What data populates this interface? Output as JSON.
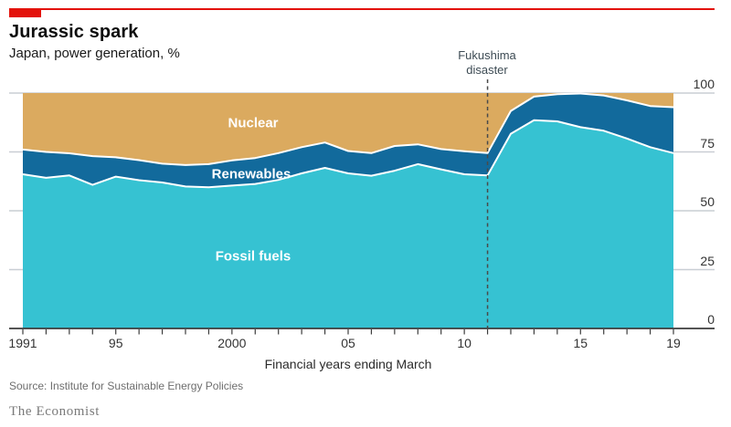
{
  "header": {
    "title": "Jurassic spark",
    "subtitle": "Japan, power generation, %"
  },
  "annotation": {
    "line1": "Fukushima",
    "line2": "disaster",
    "year": 2011
  },
  "series_labels": {
    "nuclear": "Nuclear",
    "renewables": "Renewables",
    "fossil": "Fossil fuels"
  },
  "x_axis_title": "Financial years ending March",
  "source": "Source: Institute for Sustainable Energy Policies",
  "brand": "The Economist",
  "colors": {
    "red": "#E3120B",
    "fossil": "#36C2D2",
    "renewables": "#126A9C",
    "nuclear": "#DBAA5F",
    "grid": "#C9CED4",
    "axis": "#3C3C3C",
    "dashed": "#4A4A4A",
    "separator": "#FFFFFF"
  },
  "chart_data": {
    "type": "area",
    "stacked": true,
    "title": "Jurassic spark",
    "subtitle": "Japan, power generation, %",
    "xlabel": "Financial years ending March",
    "ylabel": "%",
    "ylim": [
      0,
      100
    ],
    "y_ticks": [
      0,
      25,
      50,
      75,
      100
    ],
    "grid": "horizontal",
    "legend_position": "labels-inside-areas",
    "x": [
      1991,
      1992,
      1993,
      1994,
      1995,
      1996,
      1997,
      1998,
      1999,
      2000,
      2001,
      2002,
      2003,
      2004,
      2005,
      2006,
      2007,
      2008,
      2009,
      2010,
      2011,
      2012,
      2013,
      2014,
      2015,
      2016,
      2017,
      2018,
      2019
    ],
    "x_tick_labels": [
      {
        "year": 1991,
        "label": "1991"
      },
      {
        "year": 1995,
        "label": "95"
      },
      {
        "year": 2000,
        "label": "2000"
      },
      {
        "year": 2005,
        "label": "05"
      },
      {
        "year": 2010,
        "label": "10"
      },
      {
        "year": 2015,
        "label": "15"
      },
      {
        "year": 2019,
        "label": "19"
      }
    ],
    "series": [
      {
        "name": "Fossil fuels",
        "values": [
          65.5,
          64.0,
          65.0,
          61.0,
          64.5,
          63.0,
          62.0,
          60.3,
          60.0,
          60.7,
          61.4,
          63.1,
          65.9,
          68.2,
          65.9,
          64.9,
          67.0,
          69.8,
          67.6,
          65.5,
          65.0,
          82.7,
          88.5,
          88.0,
          85.5,
          84.0,
          80.7,
          77.0,
          74.5
        ]
      },
      {
        "name": "Renewables",
        "values": [
          10.5,
          11.0,
          9.4,
          12.2,
          8.2,
          8.5,
          8.0,
          9.1,
          9.8,
          10.7,
          11.0,
          11.4,
          11.1,
          10.8,
          9.5,
          9.6,
          10.5,
          8.4,
          8.6,
          9.8,
          9.5,
          9.7,
          10.0,
          11.5,
          14.3,
          15.0,
          16.2,
          17.5,
          19.5
        ]
      },
      {
        "name": "Nuclear",
        "values": [
          24.0,
          25.0,
          25.6,
          26.8,
          27.3,
          28.5,
          30.0,
          30.6,
          30.2,
          28.6,
          27.6,
          25.5,
          23.0,
          21.0,
          24.6,
          25.5,
          22.5,
          21.8,
          23.8,
          24.7,
          25.5,
          7.6,
          1.5,
          0.5,
          0.2,
          1.0,
          3.1,
          5.5,
          6.0
        ]
      }
    ],
    "annotation_year": 2011
  }
}
